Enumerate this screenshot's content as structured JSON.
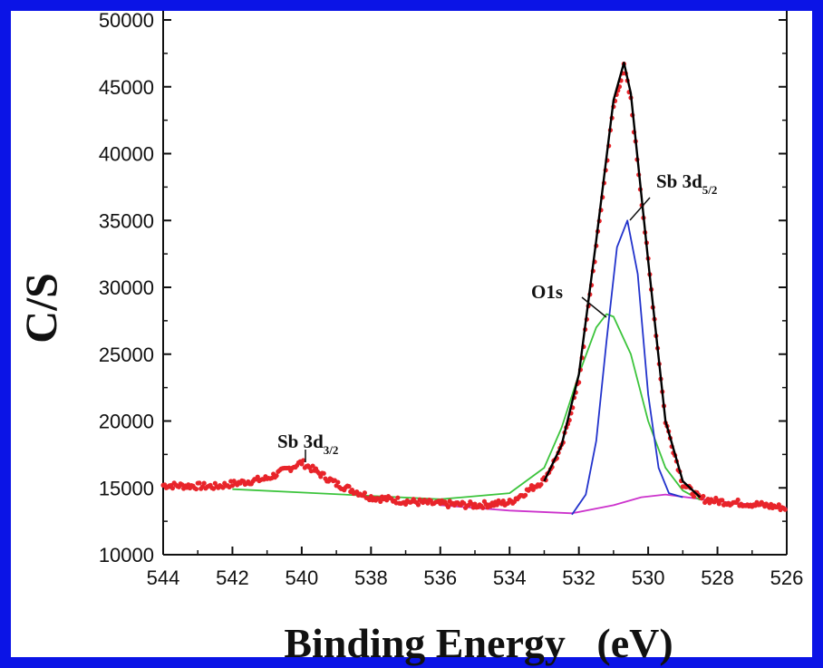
{
  "chart_data": {
    "type": "line",
    "xlabel": "Binding Energy   (eV)",
    "ylabel": "C/S",
    "xlim": [
      544,
      526
    ],
    "ylim": [
      10000,
      50000
    ],
    "x_reversed": true,
    "xticks": [
      "544",
      "542",
      "540",
      "538",
      "536",
      "534",
      "532",
      "530",
      "528",
      "526"
    ],
    "yticks": [
      "10000",
      "15000",
      "20000",
      "25000",
      "30000",
      "35000",
      "40000",
      "45000",
      "50000"
    ],
    "grid": false,
    "annotations": [
      {
        "text": "Sb 3d",
        "sub": "3/2",
        "x": 540.1,
        "y": 16900
      },
      {
        "text": "O1s",
        "sub": "",
        "x": 531.3,
        "y": 28000
      },
      {
        "text": "Sb 3d",
        "sub": "5/2",
        "x": 530.6,
        "y": 35000
      }
    ],
    "series": [
      {
        "role": "raw data",
        "color": "#e8242a",
        "x": [
          544,
          542.5,
          541,
          540,
          539,
          538,
          537,
          536,
          535,
          534,
          533,
          532.5,
          532,
          531.5,
          531,
          530.7,
          530.5,
          530,
          529.5,
          529,
          528.5,
          528,
          527,
          526
        ],
        "y": [
          15200,
          15100,
          15700,
          16900,
          15300,
          14300,
          14000,
          13800,
          13700,
          13900,
          15600,
          18000,
          23000,
          33000,
          43500,
          46500,
          44000,
          32000,
          20000,
          15300,
          14200,
          14000,
          13800,
          13500
        ]
      },
      {
        "role": "envelope fit",
        "color": "#000000",
        "x": [
          533,
          532.5,
          532,
          531.5,
          531,
          530.7,
          530.5,
          530,
          529.5,
          529,
          528.5
        ],
        "y": [
          15500,
          18200,
          23500,
          33500,
          44000,
          46800,
          44500,
          32000,
          20000,
          15500,
          14300
        ]
      },
      {
        "role": "O1s component",
        "color": "#3cc43c",
        "x": [
          542,
          540,
          538,
          536,
          534,
          533,
          532.5,
          532,
          531.5,
          531.2,
          531,
          530.5,
          530,
          529.5,
          529,
          528.5
        ],
        "y": [
          14900,
          14650,
          14400,
          14150,
          14600,
          16500,
          19500,
          23500,
          27000,
          28000,
          27800,
          25000,
          20000,
          16500,
          14800,
          14100
        ]
      },
      {
        "role": "Sb 3d5/2 component",
        "color": "#2233cc",
        "x": [
          532.2,
          531.8,
          531.5,
          531.2,
          530.9,
          530.6,
          530.3,
          530,
          529.7,
          529.4,
          529
        ],
        "y": [
          13000,
          14500,
          18500,
          26000,
          33000,
          35000,
          31000,
          22000,
          16500,
          14600,
          14300
        ]
      },
      {
        "role": "background",
        "color": "#cc33cc",
        "x": [
          536,
          534,
          532.2,
          531,
          530.2,
          529.5,
          528,
          526
        ],
        "y": [
          13700,
          13300,
          13100,
          13700,
          14300,
          14500,
          14000,
          13500
        ]
      }
    ]
  }
}
